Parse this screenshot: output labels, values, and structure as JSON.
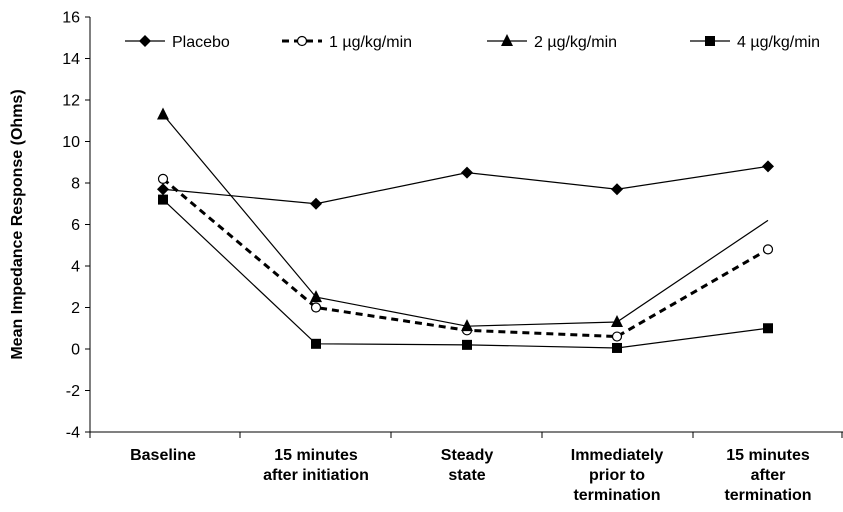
{
  "chart_data": {
    "type": "line",
    "title": "",
    "xlabel": "",
    "ylabel": "Mean Impedance Response (Ohms)",
    "ylim": [
      -4,
      16
    ],
    "yticks": [
      "-4",
      "-2",
      "0",
      "2",
      "4",
      "6",
      "8",
      "10",
      "12",
      "14",
      "16"
    ],
    "categories": [
      [
        "Baseline"
      ],
      [
        "15 minutes",
        "after initiation"
      ],
      [
        "Steady",
        "state"
      ],
      [
        "Immediately",
        "prior to",
        "termination"
      ],
      [
        "15 minutes",
        "after",
        "termination"
      ]
    ],
    "series": [
      {
        "name": "Placebo",
        "marker": "diamond",
        "dash": false,
        "values": [
          7.7,
          7.0,
          8.5,
          7.7,
          8.8
        ]
      },
      {
        "name": "1 µg/kg/min",
        "marker": "circle",
        "dash": true,
        "values": [
          8.2,
          2.0,
          0.9,
          0.6,
          4.8
        ]
      },
      {
        "name": "2 µg/kg/min",
        "marker": "triangle",
        "dash": false,
        "values": [
          11.3,
          2.5,
          1.1,
          1.3,
          6.2
        ]
      },
      {
        "name": "4 µg/kg/min",
        "marker": "square",
        "dash": false,
        "values": [
          7.2,
          0.25,
          0.2,
          0.05,
          1.0
        ]
      }
    ],
    "grid": false,
    "legend_position": "top"
  }
}
